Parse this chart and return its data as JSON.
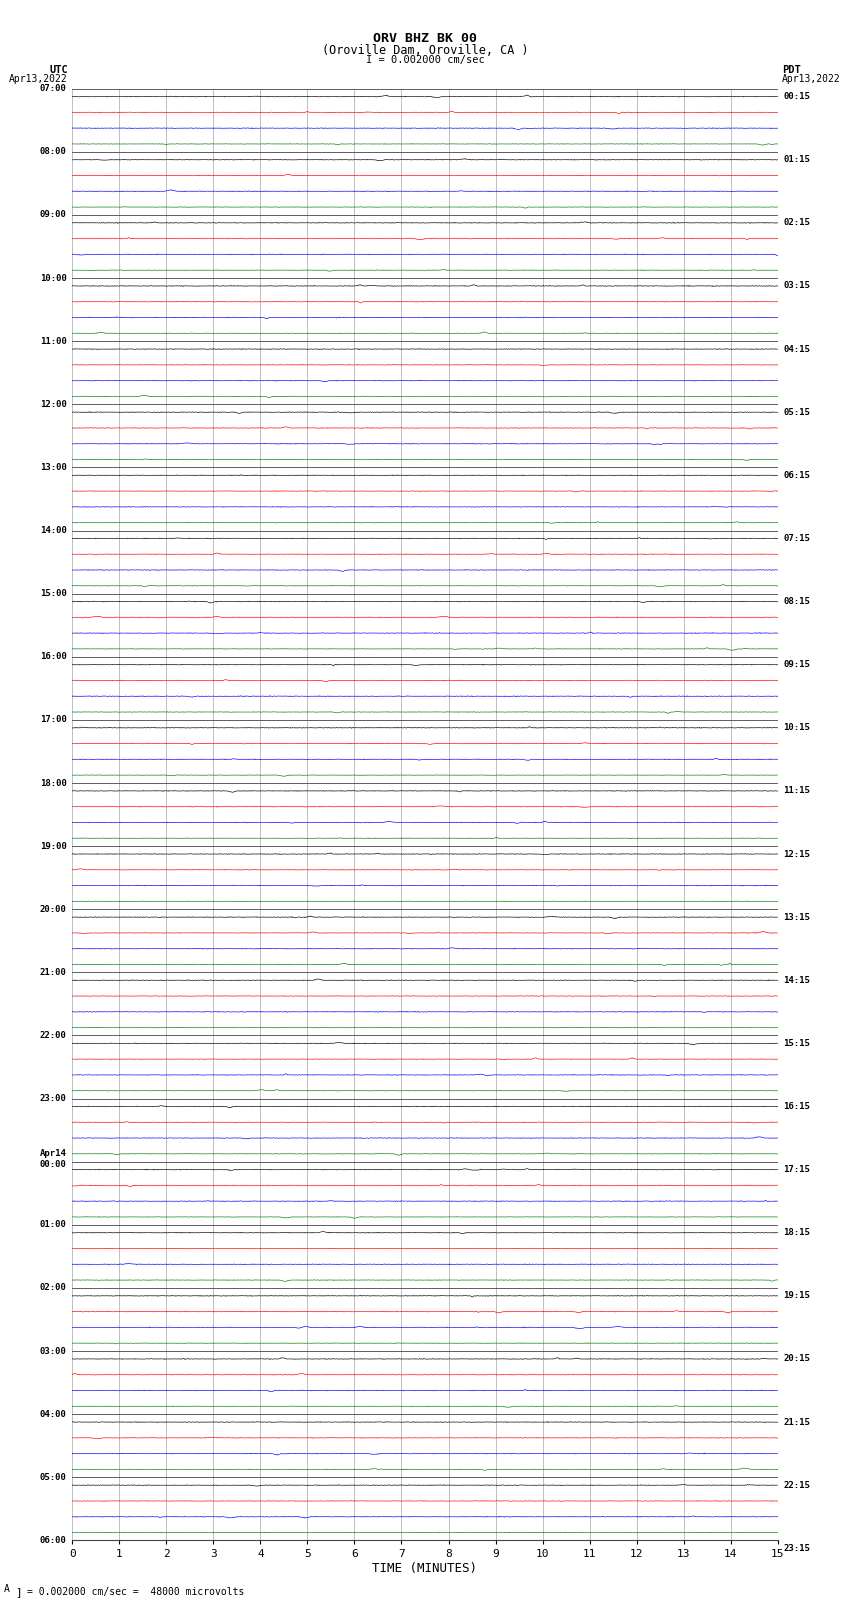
{
  "title_line1": "ORV BHZ BK 00",
  "title_line2": "(Oroville Dam, Oroville, CA )",
  "title_line3": "I = 0.002000 cm/sec",
  "label_left_header": "UTC",
  "label_left_date": "Apr13,2022",
  "label_right_header": "PDT",
  "label_right_date": "Apr13,2022",
  "xlabel": "TIME (MINUTES)",
  "footnote": "= 0.002000 cm/sec =  48000 microvolts",
  "xmin": 0,
  "xmax": 15,
  "trace_colors": [
    "black",
    "red",
    "blue",
    "green"
  ],
  "background_color": "#ffffff",
  "grid_color": "#808080",
  "fig_width": 8.5,
  "fig_height": 16.13,
  "dpi": 100,
  "left_label_times_utc": [
    "07:00",
    "08:00",
    "09:00",
    "10:00",
    "11:00",
    "12:00",
    "13:00",
    "14:00",
    "15:00",
    "16:00",
    "17:00",
    "18:00",
    "19:00",
    "20:00",
    "21:00",
    "22:00",
    "23:00",
    "Apr14\n00:00",
    "01:00",
    "02:00",
    "03:00",
    "04:00",
    "05:00",
    "06:00"
  ],
  "right_label_times_pdt": [
    "00:15",
    "01:15",
    "02:15",
    "03:15",
    "04:15",
    "05:15",
    "06:15",
    "07:15",
    "08:15",
    "09:15",
    "10:15",
    "11:15",
    "12:15",
    "13:15",
    "14:15",
    "15:15",
    "16:15",
    "17:15",
    "18:15",
    "19:15",
    "20:15",
    "21:15",
    "22:15",
    "23:15"
  ]
}
